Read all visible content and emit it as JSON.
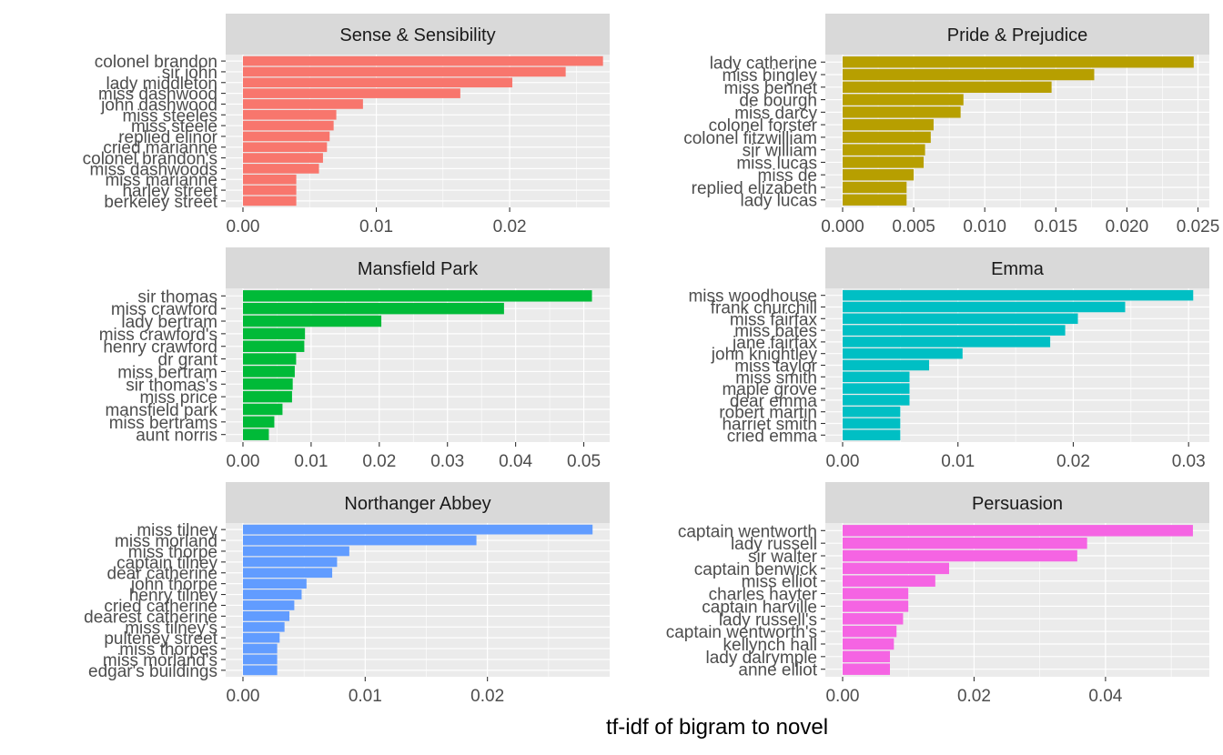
{
  "chart_data": {
    "type": "bar",
    "orientation": "horizontal",
    "facet_layout": "3x2",
    "xlabel": "tf-idf of bigram to novel",
    "ylabel": "",
    "grid": true,
    "legend": "none",
    "panels": [
      {
        "title": "Sense & Sensibility",
        "color": "#F8766D",
        "xlim": [
          0,
          0.0275
        ],
        "xticks": [
          0,
          0.01,
          0.02
        ],
        "xtick_labels": [
          "0.00",
          "0.01",
          "0.02"
        ],
        "categories": [
          "colonel brandon",
          "sir john",
          "lady middleton",
          "miss dashwood",
          "john dashwood",
          "miss steeles",
          "miss steele",
          "replied elinor",
          "cried marianne",
          "colonel brandon's",
          "miss dashwoods",
          "miss marianne",
          "harley street",
          "berkeley street"
        ],
        "values": [
          0.027,
          0.0242,
          0.0202,
          0.0163,
          0.009,
          0.007,
          0.0068,
          0.0065,
          0.0063,
          0.006,
          0.0057,
          0.004,
          0.004,
          0.004
        ]
      },
      {
        "title": "Pride & Prejudice",
        "color": "#B79F00",
        "xlim": [
          0,
          0.0258
        ],
        "xticks": [
          0,
          0.005,
          0.01,
          0.015,
          0.02,
          0.025
        ],
        "xtick_labels": [
          "0.000",
          "0.005",
          "0.010",
          "0.015",
          "0.020",
          "0.025"
        ],
        "categories": [
          "lady catherine",
          "miss bingley",
          "miss bennet",
          "de bourgh",
          "miss darcy",
          "colonel forster",
          "colonel fitzwilliam",
          "sir william",
          "miss lucas",
          "miss de",
          "replied elizabeth",
          "lady lucas"
        ],
        "values": [
          0.0247,
          0.0177,
          0.0147,
          0.0085,
          0.0083,
          0.0064,
          0.0062,
          0.0058,
          0.0057,
          0.005,
          0.0045,
          0.0045
        ]
      },
      {
        "title": "Mansfield Park",
        "color": "#00BA38",
        "xlim": [
          0,
          0.0538
        ],
        "xticks": [
          0,
          0.01,
          0.02,
          0.03,
          0.04,
          0.05
        ],
        "xtick_labels": [
          "0.00",
          "0.01",
          "0.02",
          "0.03",
          "0.04",
          "0.05"
        ],
        "categories": [
          "sir thomas",
          "miss crawford",
          "lady bertram",
          "miss crawford's",
          "henry crawford",
          "dr grant",
          "miss bertram",
          "sir thomas's",
          "miss price",
          "mansfield park",
          "miss bertrams",
          "aunt norris"
        ],
        "values": [
          0.0512,
          0.0383,
          0.0203,
          0.0091,
          0.009,
          0.0078,
          0.0076,
          0.0073,
          0.0072,
          0.0058,
          0.0046,
          0.0038
        ]
      },
      {
        "title": "Emma",
        "color": "#00BFC4",
        "xlim": [
          0,
          0.0318
        ],
        "xticks": [
          0,
          0.01,
          0.02,
          0.03
        ],
        "xtick_labels": [
          "0.00",
          "0.01",
          "0.02",
          "0.03"
        ],
        "categories": [
          "miss woodhouse",
          "frank churchill",
          "miss fairfax",
          "miss bates",
          "jane fairfax",
          "john knightley",
          "miss taylor",
          "miss smith",
          "maple grove",
          "dear emma",
          "robert martin",
          "harriet smith",
          "cried emma"
        ],
        "values": [
          0.0304,
          0.0245,
          0.0204,
          0.0193,
          0.018,
          0.0104,
          0.0075,
          0.0058,
          0.0058,
          0.0058,
          0.005,
          0.005,
          0.005
        ]
      },
      {
        "title": "Northanger Abbey",
        "color": "#619CFF",
        "xlim": [
          0,
          0.03
        ],
        "xticks": [
          0,
          0.01,
          0.02
        ],
        "xtick_labels": [
          "0.00",
          "0.01",
          "0.02"
        ],
        "categories": [
          "miss tilney",
          "miss morland",
          "miss thorpe",
          "captain tilney",
          "dear catherine",
          "john thorpe",
          "henry tilney",
          "cried catherine",
          "dearest catherine",
          "miss tilney's",
          "pulteney street",
          "miss thorpes",
          "miss morland's",
          "edgar's buildings"
        ],
        "values": [
          0.0286,
          0.0191,
          0.0087,
          0.0077,
          0.0073,
          0.0052,
          0.0048,
          0.0042,
          0.0038,
          0.0034,
          0.003,
          0.0028,
          0.0028,
          0.0028
        ]
      },
      {
        "title": "Persuasion",
        "color": "#F564E3",
        "xlim": [
          0,
          0.0558
        ],
        "xticks": [
          0,
          0.02,
          0.04
        ],
        "xtick_labels": [
          "0.00",
          "0.02",
          "0.04"
        ],
        "categories": [
          "captain wentworth",
          "lady russell",
          "sir walter",
          "captain benwick",
          "miss elliot",
          "charles hayter",
          "captain harville",
          "lady russell's",
          "captain wentworth's",
          "kellynch hall",
          "lady dalrymple",
          "anne elliot"
        ],
        "values": [
          0.0533,
          0.0372,
          0.0357,
          0.0162,
          0.0141,
          0.01,
          0.01,
          0.0092,
          0.0082,
          0.0078,
          0.0072,
          0.0072
        ]
      }
    ]
  }
}
